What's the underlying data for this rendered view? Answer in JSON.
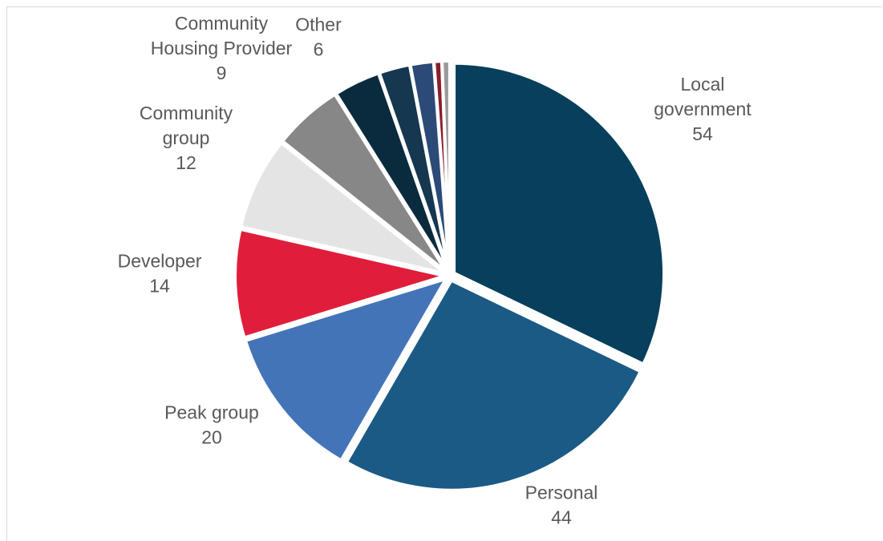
{
  "chart_data": {
    "type": "pie",
    "slices": [
      {
        "label": "Local government",
        "value": 54,
        "color": "#073f5c",
        "lines": [
          "Local",
          "government"
        ],
        "show_label": true
      },
      {
        "label": "Personal",
        "value": 44,
        "color": "#1a5a85",
        "lines": [
          "Personal"
        ],
        "show_label": true
      },
      {
        "label": "Peak group",
        "value": 20,
        "color": "#4474b8",
        "lines": [
          "Peak group"
        ],
        "show_label": true
      },
      {
        "label": "Developer",
        "value": 14,
        "color": "#e01e3c",
        "lines": [
          "Developer"
        ],
        "show_label": true
      },
      {
        "label": "Community group",
        "value": 12,
        "color": "#e4e4e4",
        "lines": [
          "Community",
          "group"
        ],
        "show_label": true
      },
      {
        "label": "Community Housing Provider",
        "value": 9,
        "color": "#878787",
        "lines": [
          "Community",
          "Housing Provider"
        ],
        "show_label": true
      },
      {
        "label": "Other",
        "value": 6,
        "color": "#0a2b3e",
        "lines": [
          "Other"
        ],
        "show_label": true
      },
      {
        "label": "",
        "value": 4,
        "color": "#15374f",
        "lines": [],
        "show_label": false
      },
      {
        "label": "",
        "value": 3,
        "color": "#2b4a78",
        "lines": [],
        "show_label": false
      },
      {
        "label": "",
        "value": 1,
        "color": "#8b1d2c",
        "lines": [],
        "show_label": false
      },
      {
        "label": "",
        "value": 1,
        "color": "#9a9a9a",
        "lines": [],
        "show_label": false
      }
    ],
    "start_angle_deg": 0,
    "direction": "clockwise",
    "legend": "none",
    "label_color": "#595959"
  }
}
